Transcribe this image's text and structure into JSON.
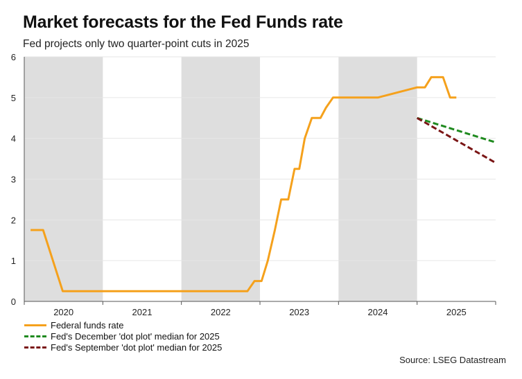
{
  "title": "Market forecasts for the Fed Funds rate",
  "subtitle": "Fed projects only two quarter-point cuts in 2025",
  "source": "Source: LSEG Datastream",
  "chart_data": {
    "type": "line",
    "title": "Market forecasts for the Fed Funds rate",
    "xlabel": "",
    "ylabel": "",
    "xlim": [
      2019.75,
      2025.75
    ],
    "ylim": [
      0,
      6
    ],
    "y_ticks": [
      "0",
      "1",
      "2",
      "3",
      "4",
      "5",
      "6"
    ],
    "x_tick_labels": [
      {
        "label": "2020",
        "x": 2020.25
      },
      {
        "label": "2021",
        "x": 2021.25
      },
      {
        "label": "2022",
        "x": 2022.25
      },
      {
        "label": "2023",
        "x": 2023.25
      },
      {
        "label": "2024",
        "x": 2024.25
      },
      {
        "label": "2025",
        "x": 2025.25
      }
    ],
    "shaded_years": [
      {
        "from": 2019.75,
        "to": 2020.75
      },
      {
        "from": 2021.75,
        "to": 2022.75
      },
      {
        "from": 2023.75,
        "to": 2024.75
      }
    ],
    "grid": true,
    "legend_position": "bottom-left",
    "series": [
      {
        "name": "Federal funds rate",
        "color": "#f5a11c",
        "style": "solid",
        "x": [
          2019.83,
          2019.91,
          2019.99,
          2020.24,
          2021.25,
          2022.25,
          2022.34,
          2022.43,
          2022.51,
          2022.59,
          2022.68,
          2022.77,
          2022.85,
          2022.94,
          2023.02,
          2023.11,
          2023.19,
          2023.25,
          2023.32,
          2023.41,
          2023.52,
          2023.59,
          2023.68,
          2024.25,
          2024.75,
          2024.85,
          2024.93,
          2025.0,
          2025.08,
          2025.17,
          2025.25
        ],
        "y": [
          1.75,
          1.75,
          1.75,
          0.25,
          0.25,
          0.25,
          0.25,
          0.25,
          0.25,
          0.25,
          0.5,
          0.5,
          1.0,
          1.75,
          2.5,
          2.5,
          3.25,
          3.25,
          4.0,
          4.5,
          4.5,
          4.75,
          5.0,
          5.0,
          5.25,
          5.25,
          5.5,
          5.5,
          5.5,
          5.0,
          5.0
        ]
      },
      {
        "name": "Fed's December 'dot plot' median for 2025",
        "color": "#1f8a1f",
        "style": "dashed",
        "x": [
          2024.75,
          2025.75
        ],
        "y": [
          4.5,
          3.9
        ]
      },
      {
        "name": "Fed's September 'dot plot' median for 2025",
        "color": "#7a1515",
        "style": "dashed",
        "x": [
          2024.75,
          2025.75
        ],
        "y": [
          4.5,
          3.4
        ]
      }
    ]
  }
}
